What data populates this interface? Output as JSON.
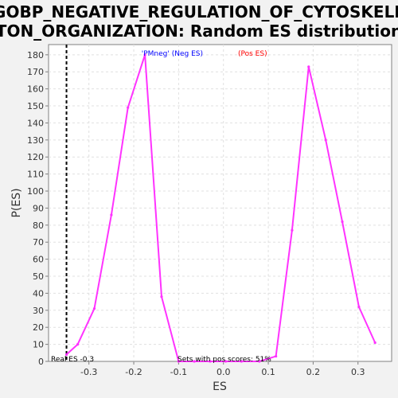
{
  "chart_data": {
    "type": "line",
    "title_line1": "GOBP_NEGATIVE_REGULATION_OF_CYTOSKELE",
    "title_line2": "TON_ORGANIZATION: Random ES distribution",
    "xlabel": "ES",
    "ylabel": "P(ES)",
    "xlim": [
      -0.39,
      0.375
    ],
    "ylim": [
      0,
      186
    ],
    "x_ticks": [
      -0.3,
      -0.2,
      -0.1,
      0.0,
      0.1,
      0.2,
      0.3
    ],
    "x_tick_labels": [
      "-0.3",
      "-0.2",
      "-0.1",
      "0.0",
      "0.1",
      "0.2",
      "0.3"
    ],
    "y_ticks": [
      0,
      10,
      20,
      30,
      40,
      50,
      60,
      70,
      80,
      90,
      100,
      110,
      120,
      130,
      140,
      150,
      160,
      170,
      180
    ],
    "grid": true,
    "legend": {
      "position": "top-center",
      "entries": [
        {
          "label": "'PMneg' (Neg ES)",
          "color": "#0000ff"
        },
        {
          "label": "(Pos ES)",
          "color": "#ff0000"
        }
      ]
    },
    "series": [
      {
        "color": "#ff33ff",
        "x": [
          -0.35,
          -0.325,
          -0.288,
          -0.25,
          -0.213,
          -0.175,
          -0.138,
          -0.1,
          -0.065,
          -0.03,
          0.005,
          0.04,
          0.08,
          0.117,
          0.153,
          0.19,
          0.228,
          0.265,
          0.302,
          0.338
        ],
        "y": [
          4,
          10,
          31,
          86,
          149,
          180,
          38,
          0,
          0,
          0,
          0,
          0,
          0,
          3,
          77,
          173,
          130,
          82,
          32,
          11
        ]
      }
    ],
    "real_es": {
      "value": -0.35,
      "label": "Real ES -0.3"
    },
    "annotation": "Sets with pos scores: 51%"
  },
  "colors": {
    "background": "#f2f2f2",
    "plot_background": "#ffffff",
    "grid": "#e0e0e0",
    "series": "#ff33ff"
  }
}
